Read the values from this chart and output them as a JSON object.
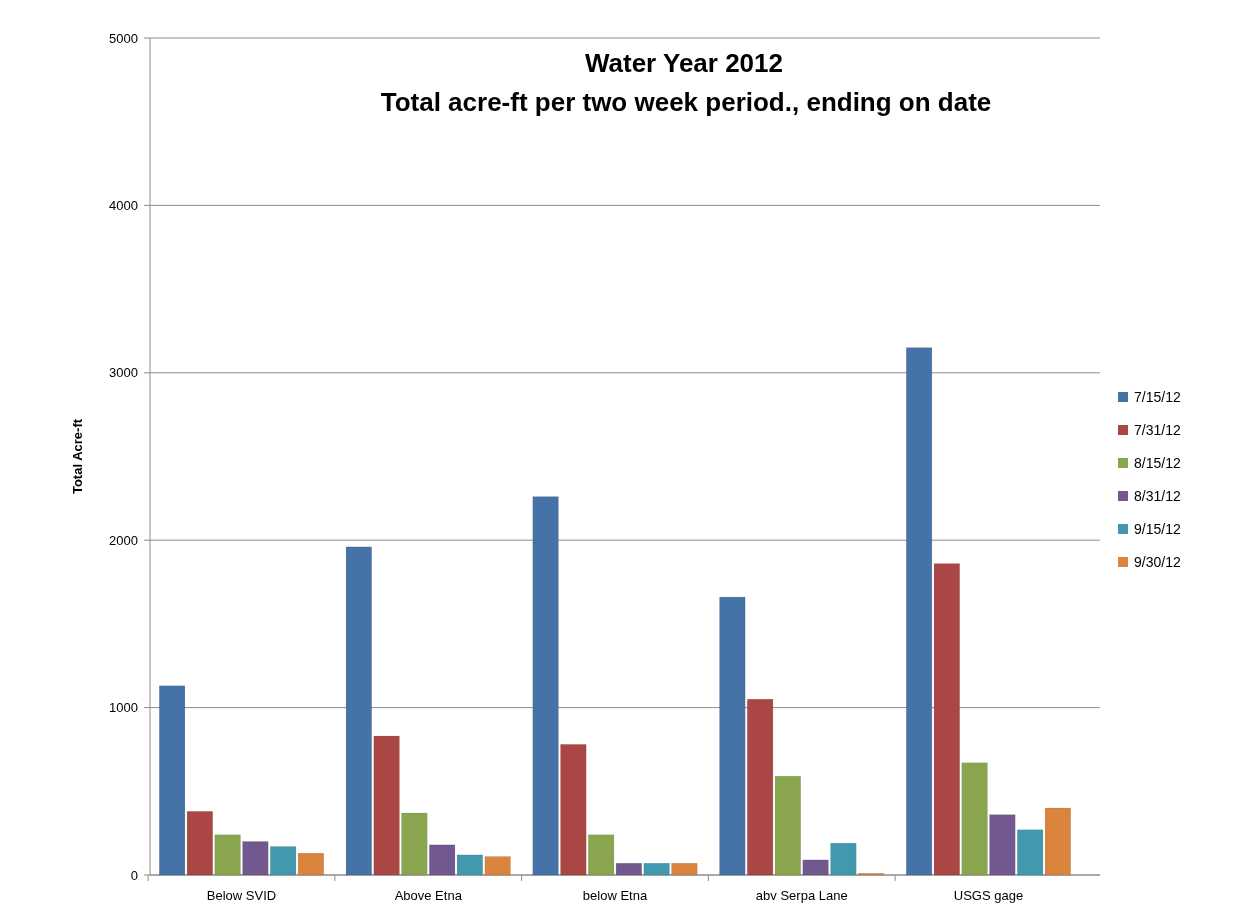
{
  "chart_data": {
    "type": "bar",
    "title": "Water Year 2012",
    "subtitle": "Total acre-ft per two week period., ending on date",
    "ylabel": "Total Acre-ft",
    "categories": [
      "Below SVID",
      "Above Etna",
      "below Etna",
      "abv Serpa Lane",
      "USGS gage"
    ],
    "series": [
      {
        "name": "7/15/12",
        "color": "#4572a7",
        "values": [
          1130,
          1960,
          2260,
          1660,
          3150
        ]
      },
      {
        "name": "7/31/12",
        "color": "#aa4643",
        "values": [
          380,
          830,
          780,
          1050,
          1860
        ]
      },
      {
        "name": "8/15/12",
        "color": "#89a54e",
        "values": [
          240,
          370,
          240,
          590,
          670
        ]
      },
      {
        "name": "8/31/12",
        "color": "#71588f",
        "values": [
          200,
          180,
          70,
          90,
          360
        ]
      },
      {
        "name": "9/15/12",
        "color": "#4198af",
        "values": [
          170,
          120,
          70,
          190,
          270
        ]
      },
      {
        "name": "9/30/12",
        "color": "#db843d",
        "values": [
          130,
          110,
          70,
          10,
          400
        ]
      }
    ],
    "ylim": [
      0,
      5000
    ],
    "yticks": [
      0,
      1000,
      2000,
      3000,
      4000,
      5000
    ],
    "grid": "y",
    "legend": "right"
  }
}
